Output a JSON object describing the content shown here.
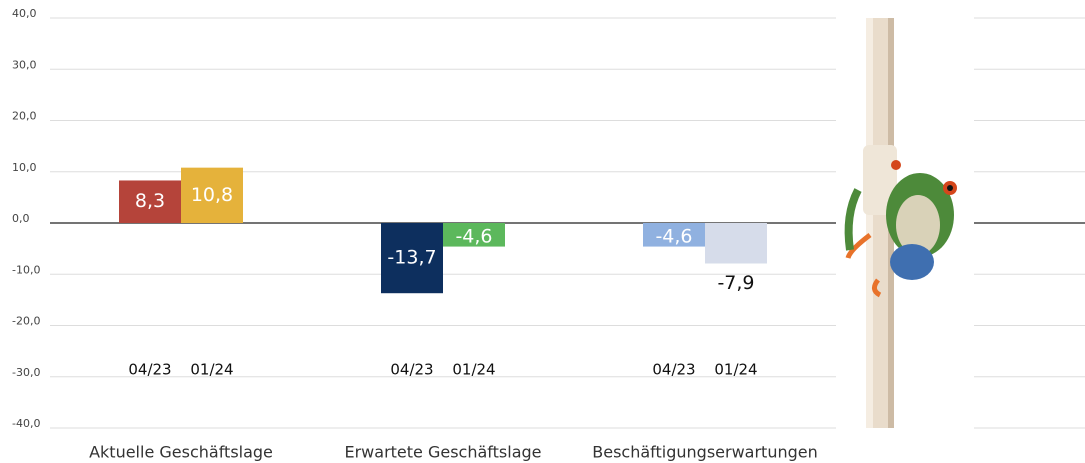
{
  "chart_data": {
    "type": "bar",
    "categories": [
      "Aktuelle Geschäftslage",
      "Erwartete Geschäftslage",
      "Beschäftigungserwartungen"
    ],
    "series": [
      {
        "name": "04/23",
        "colors": [
          "#b5443a",
          "#0d2f5e",
          "#90b1e0"
        ],
        "values": [
          8.3,
          -13.7,
          -4.6
        ],
        "value_labels": [
          "8,3",
          "-13,7",
          "-4,6"
        ],
        "label_colors": [
          "#ffffff",
          "#ffffff",
          "#ffffff"
        ]
      },
      {
        "name": "01/24",
        "colors": [
          "#e5b23b",
          "#5cb85c",
          "#d6dcea"
        ],
        "values": [
          10.8,
          -4.6,
          -7.9
        ],
        "value_labels": [
          "10,8",
          "-4,6",
          "-7,9"
        ],
        "label_colors": [
          "#ffffff",
          "#ffffff",
          "#111111"
        ]
      }
    ],
    "ylim": [
      -40,
      40
    ],
    "yticks": [
      {
        "value": -40,
        "label": "-40,0"
      },
      {
        "value": -30,
        "label": "-30,0"
      },
      {
        "value": -20,
        "label": "-20,0"
      },
      {
        "value": -10,
        "label": "-10,0"
      },
      {
        "value": 0,
        "label": "0,0"
      },
      {
        "value": 10,
        "label": "10,0"
      },
      {
        "value": 20,
        "label": "20,0"
      },
      {
        "value": 30,
        "label": "30,0"
      },
      {
        "value": 40,
        "label": "40,0"
      }
    ],
    "grid": true
  }
}
